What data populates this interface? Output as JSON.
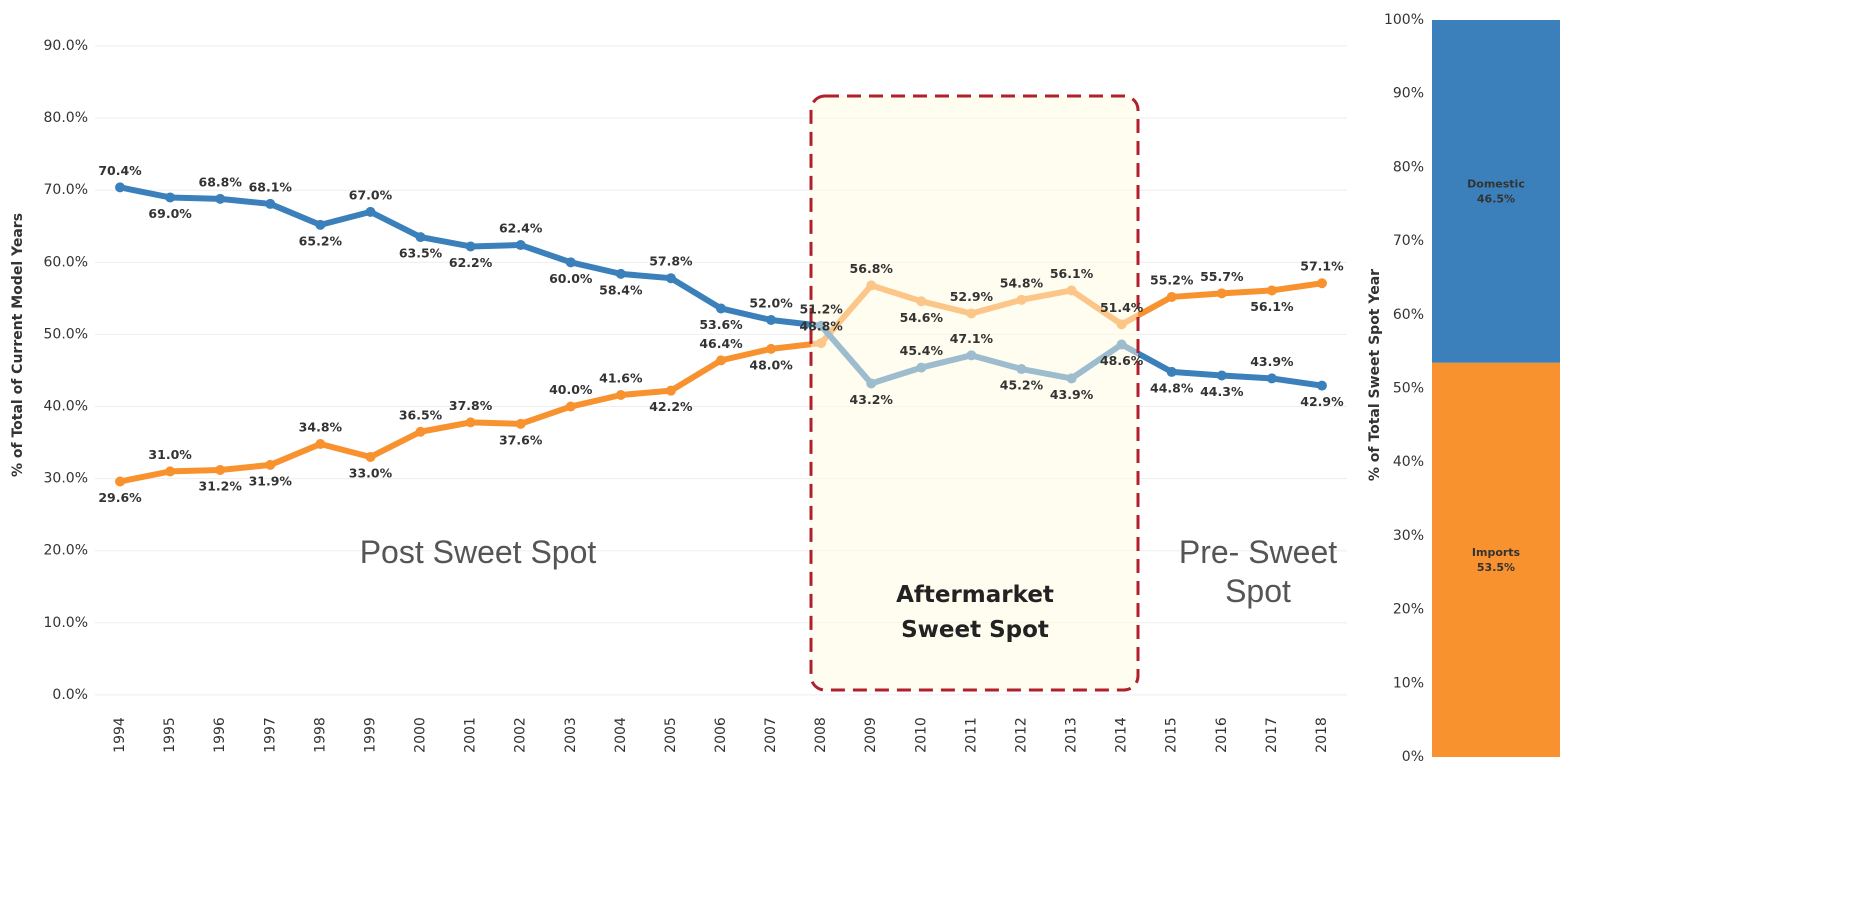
{
  "chart_data": [
    {
      "type": "line",
      "y_label": "% of Total  of Current Model Years",
      "categories": [
        "1994",
        "1995",
        "1996",
        "1997",
        "1998",
        "1999",
        "2000",
        "2001",
        "2002",
        "2003",
        "2004",
        "2005",
        "2006",
        "2007",
        "2008",
        "2009",
        "2010",
        "2011",
        "2012",
        "2013",
        "2014",
        "2015",
        "2016",
        "2017",
        "2018"
      ],
      "series": [
        {
          "color": "#f8922f",
          "values": [
            29.6,
            31.0,
            31.2,
            31.9,
            34.8,
            33.0,
            36.5,
            37.8,
            37.6,
            40.0,
            41.6,
            42.2,
            46.4,
            48.0,
            48.8,
            56.8,
            54.6,
            52.9,
            54.8,
            56.1,
            51.4,
            55.2,
            55.7,
            56.1,
            57.1
          ],
          "value_labels": [
            "29.6%",
            "31.0%",
            "31.2%",
            "31.9%",
            "34.8%",
            "33.0%",
            "36.5%",
            "37.8%",
            "37.6%",
            "40.0%",
            "41.6%",
            "42.2%",
            "46.4%",
            "48.0%",
            "48.8%",
            "56.8%",
            "54.6%",
            "52.9%",
            "54.8%",
            "56.1%",
            "51.4%",
            "55.2%",
            "55.7%",
            "56.1%",
            "57.1%"
          ]
        },
        {
          "color": "#3b80ba",
          "values": [
            70.4,
            69.0,
            68.8,
            68.1,
            65.2,
            67.0,
            63.5,
            62.2,
            62.4,
            60.0,
            58.4,
            57.8,
            53.6,
            52.0,
            51.2,
            43.2,
            45.4,
            47.1,
            45.2,
            43.9,
            48.6,
            44.8,
            44.3,
            43.9,
            42.9
          ],
          "value_labels": [
            "70.4%",
            "69.0%",
            "68.8%",
            "68.1%",
            "65.2%",
            "67.0%",
            "63.5%",
            "62.2%",
            "62.4%",
            "60.0%",
            "58.4%",
            "57.8%",
            "53.6%",
            "52.0%",
            "51.2%",
            "43.2%",
            "45.4%",
            "47.1%",
            "45.2%",
            "43.9%",
            "48.6%",
            "44.8%",
            "44.3%",
            "43.9%",
            "42.9%"
          ]
        }
      ],
      "ylim": [
        -1.4,
        95
      ],
      "yticks": [
        {
          "value": 0,
          "label": "0.0%"
        },
        {
          "value": 10,
          "label": "10.0%"
        },
        {
          "value": 20,
          "label": "20.0%"
        },
        {
          "value": 30,
          "label": "30.0%"
        },
        {
          "value": 40,
          "label": "40.0%"
        },
        {
          "value": 50,
          "label": "50.0%"
        },
        {
          "value": 60,
          "label": "60.0%"
        },
        {
          "value": 70,
          "label": "70.0%"
        },
        {
          "value": 80,
          "label": "80.0%"
        },
        {
          "value": 90,
          "label": "90.0%"
        }
      ],
      "grid": true,
      "annotations": [
        "Post Sweet Spot",
        "Aftermarket Sweet Spot",
        "Pre- Sweet Spot"
      ]
    },
    {
      "type": "bar",
      "stacked": true,
      "y_label": "% of Total Sweet Spot Year",
      "series": [
        {
          "name": "Imports",
          "color": "#f8922f",
          "values": [
            53.5
          ],
          "value_labels": [
            "53.5%"
          ]
        },
        {
          "name": "Domestic",
          "color": "#3b80ba",
          "values": [
            46.5
          ],
          "value_labels": [
            "46.5%"
          ]
        }
      ],
      "ylim": [
        0,
        100
      ],
      "yticks": [
        {
          "value": 0,
          "label": "0%"
        },
        {
          "value": 10,
          "label": "10%"
        },
        {
          "value": 20,
          "label": "20%"
        },
        {
          "value": 30,
          "label": "30%"
        },
        {
          "value": 40,
          "label": "40%"
        },
        {
          "value": 50,
          "label": "50%"
        },
        {
          "value": 60,
          "label": "60%"
        },
        {
          "value": 70,
          "label": "70%"
        },
        {
          "value": 80,
          "label": "80%"
        },
        {
          "value": 90,
          "label": "90%"
        },
        {
          "value": 100,
          "label": "100%"
        }
      ]
    }
  ]
}
